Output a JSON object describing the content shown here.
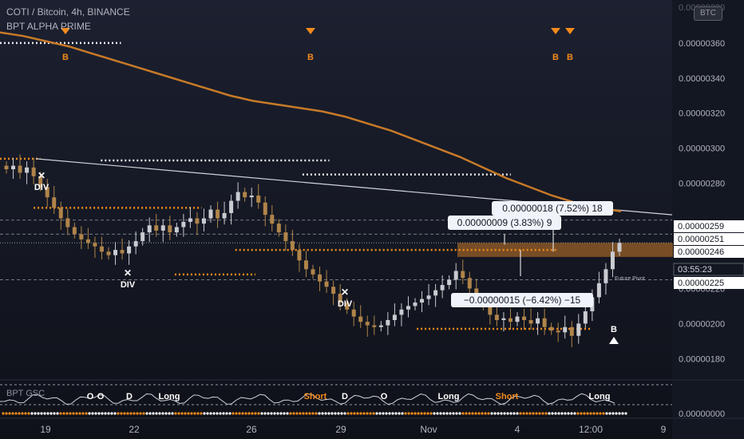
{
  "header": {
    "title": "COTI / Bitcoin, 4h, BINANCE",
    "indicator": "BPT ALPHA PRIME",
    "subpanel_label": "BPT GSC",
    "currency_badge": "BTC"
  },
  "colors": {
    "up_candle": "#c9cbd1",
    "down_candle": "#b0844a",
    "ma_line": "#c87a28",
    "orange_level": "#f28b1d",
    "white_level": "#e8e8e8",
    "background": "#131722"
  },
  "chart_data": {
    "type": "candlestick",
    "symbol": "COTI/BTC",
    "timeframe": "4h",
    "exchange": "BINANCE",
    "ylim": [
      1.715e-06,
      3.845e-06
    ],
    "x_tick_labels": [
      "19",
      "22",
      "26",
      "29",
      "Nov",
      "4",
      "12:00",
      "9"
    ],
    "y_tick_labels": [
      "0.00000360",
      "0.00000340",
      "0.00000320",
      "0.00000300",
      "0.00000280",
      "0.00000220",
      "0.00000200",
      "0.00000180"
    ],
    "price_tags": [
      {
        "label": "0.00000259",
        "value": 2.59e-06
      },
      {
        "label": "0.00000251",
        "value": 2.51e-06
      },
      {
        "label": "0.00000246",
        "value": 2.46e-06
      },
      {
        "label": "03:55:23",
        "value": 2.4e-06
      },
      {
        "label": "0.00000225",
        "value": 2.25e-06
      }
    ],
    "sub_axis_label": "0.00000000",
    "close_series": [
      2.88,
      2.9,
      2.86,
      2.89,
      2.84,
      2.78,
      2.72,
      2.66,
      2.6,
      2.55,
      2.51,
      2.48,
      2.46,
      2.44,
      2.41,
      2.39,
      2.42,
      2.4,
      2.44,
      2.47,
      2.52,
      2.56,
      2.53,
      2.56,
      2.52,
      2.55,
      2.58,
      2.6,
      2.57,
      2.6,
      2.65,
      2.6,
      2.63,
      2.7,
      2.75,
      2.72,
      2.73,
      2.69,
      2.62,
      2.57,
      2.52,
      2.47,
      2.42,
      2.36,
      2.31,
      2.28,
      2.24,
      2.21,
      2.17,
      2.12,
      2.08,
      2.04,
      2.01,
      1.99,
      1.98,
      1.99,
      2.02,
      2.05,
      2.08,
      2.1,
      2.12,
      2.14,
      2.16,
      2.19,
      2.22,
      2.25,
      2.3,
      2.26,
      2.2,
      2.15,
      2.1,
      2.05,
      2.02,
      2.03,
      2.01,
      2.04,
      2.02,
      2.0,
      2.03,
      1.98,
      1.96,
      1.95,
      1.98,
      1.93,
      2.0,
      2.07,
      2.15,
      2.23,
      2.31,
      2.41,
      2.46
    ],
    "moving_average": {
      "name": "",
      "values": [
        3.66,
        3.64,
        3.61,
        3.58,
        3.54,
        3.5,
        3.46,
        3.42,
        3.38,
        3.34,
        3.3,
        3.27,
        3.25,
        3.23,
        3.21,
        3.18,
        3.14,
        3.1,
        3.05,
        3.0,
        2.95,
        2.89,
        2.83,
        2.78,
        2.73,
        2.69,
        2.66,
        2.64
      ]
    },
    "horizontal_levels": [
      {
        "color": "white",
        "value": 3.6e-06,
        "span": [
          0.0,
          0.18
        ]
      },
      {
        "color": "white",
        "value": 2.93e-06,
        "span": [
          0.15,
          0.49
        ]
      },
      {
        "color": "white",
        "value": 2.85e-06,
        "span": [
          0.45,
          0.76
        ]
      },
      {
        "color": "orange",
        "value": 2.94e-06,
        "span": [
          0.0,
          0.06
        ]
      },
      {
        "color": "orange",
        "value": 2.66e-06,
        "span": [
          0.05,
          0.3
        ]
      },
      {
        "color": "orange",
        "value": 2.42e-06,
        "span": [
          0.35,
          0.83
        ]
      },
      {
        "color": "orange",
        "value": 2.28e-06,
        "span": [
          0.26,
          0.38
        ]
      },
      {
        "color": "orange",
        "value": 1.97e-06,
        "span": [
          0.62,
          0.88
        ]
      },
      {
        "color": "grey",
        "value": 2.59e-06,
        "span": [
          0.0,
          0.91
        ]
      },
      {
        "color": "grey",
        "value": 2.51e-06,
        "span": [
          0.0,
          0.91
        ]
      },
      {
        "color": "grey",
        "value": 2.25e-06,
        "span": [
          0.0,
          0.91
        ]
      }
    ],
    "annotations": [
      {
        "text": "B",
        "kind": "buy-top"
      },
      {
        "text": "B",
        "kind": "buy-top"
      },
      {
        "text": "B",
        "kind": "buy-top"
      },
      {
        "text": "B",
        "kind": "buy-top"
      },
      {
        "text": "DIV",
        "kind": "divergence"
      },
      {
        "text": "DIV",
        "kind": "divergence"
      },
      {
        "text": "DIV",
        "kind": "divergence"
      },
      {
        "text": "B",
        "kind": "buy-bottom"
      },
      {
        "text": "Future Pivot",
        "kind": "note"
      }
    ],
    "measurements": [
      {
        "text": "0.00000018 (7.52%) 18"
      },
      {
        "text": "0.00000009 (3.83%) 9"
      },
      {
        "text": "−0.00000015 (−6.42%) −15"
      }
    ],
    "sub_labels": [
      "O",
      "O",
      "D",
      "Long",
      "Short",
      "D",
      "O",
      "Long",
      "Short",
      "Long"
    ]
  }
}
